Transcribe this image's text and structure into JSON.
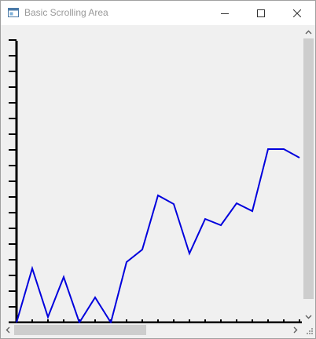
{
  "window": {
    "title": "Basic Scrolling Area",
    "icons": {
      "app": "app-icon",
      "minimize": "minimize-icon",
      "maximize": "maximize-icon",
      "close": "close-icon"
    }
  },
  "scrollbars": {
    "vertical": {
      "up_icon": "chevron-up-icon",
      "down_icon": "chevron-down-icon"
    },
    "horizontal": {
      "left_icon": "chevron-left-icon",
      "right_icon": "chevron-right-icon"
    },
    "corner_icon": "size-grip-icon"
  },
  "chart_data": {
    "type": "line",
    "title": "",
    "xlabel": "",
    "ylabel": "",
    "line_color": "#0000dd",
    "axis_color": "#000000",
    "x_tick_count": 19,
    "y_tick_count": 18,
    "values": [
      0,
      3.45,
      0.35,
      2.9,
      0,
      1.6,
      0,
      3.85,
      4.65,
      8.1,
      7.55,
      4.4,
      6.6,
      6.2,
      7.6,
      7.1,
      11.05,
      11.05,
      10.5
    ],
    "ylim": [
      0,
      18
    ]
  }
}
